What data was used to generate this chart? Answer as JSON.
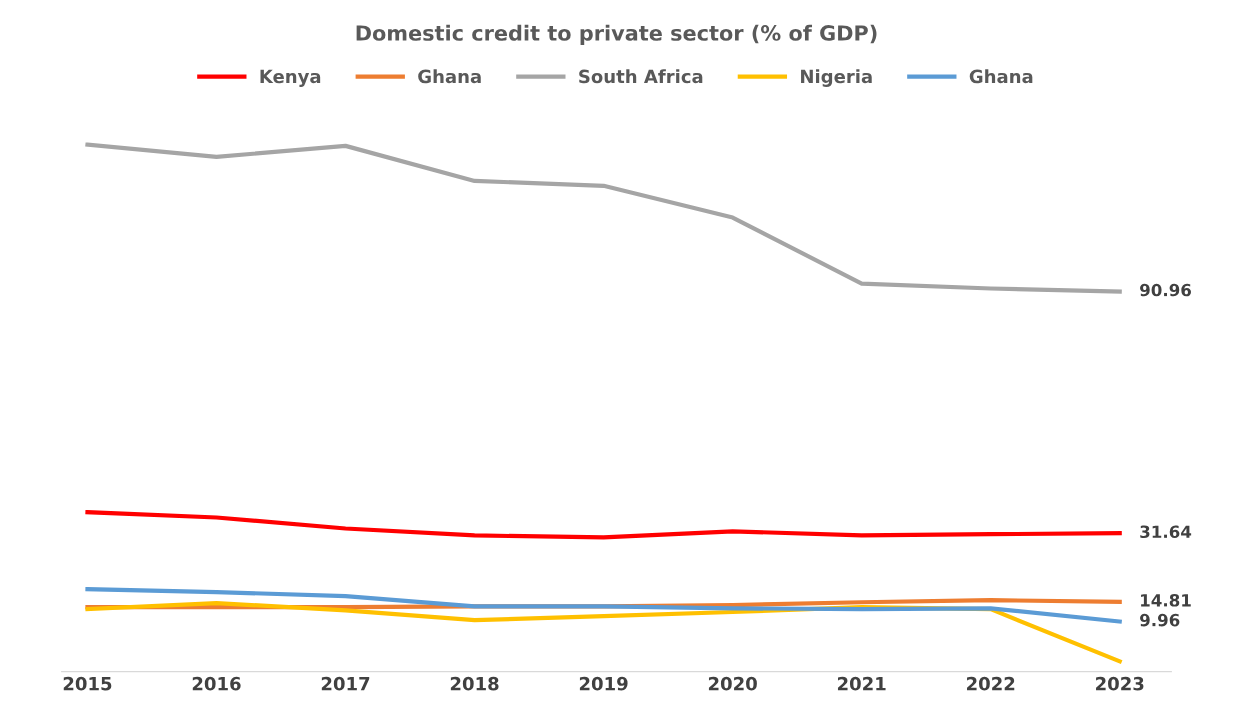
{
  "chart_data": {
    "type": "line",
    "title": "Domestic credit to private sector (% of GDP)",
    "categories": [
      "2015",
      "2016",
      "2017",
      "2018",
      "2019",
      "2020",
      "2021",
      "2022",
      "2023"
    ],
    "tick_labels": "x",
    "grid": false,
    "legend": "top",
    "marker": "none",
    "line_style": "solid",
    "series": [
      {
        "name": "Kenya",
        "color": "#ff0000",
        "values": [
          36.8,
          35.5,
          32.8,
          31.1,
          30.6,
          32.1,
          31.1,
          31.4,
          31.64
        ],
        "value_labels": [
          null,
          null,
          null,
          null,
          null,
          null,
          null,
          null,
          "31.64"
        ]
      },
      {
        "name": "Ghana",
        "color": "#ed7d31",
        "values": [
          13.5,
          13.5,
          13.5,
          13.7,
          13.7,
          14.0,
          14.7,
          15.2,
          14.81
        ],
        "value_labels": [
          null,
          null,
          null,
          null,
          null,
          null,
          null,
          null,
          "14.81"
        ]
      },
      {
        "name": "South Africa",
        "color": "#a5a5a5",
        "values": [
          127.0,
          124.0,
          126.7,
          118.1,
          116.9,
          109.1,
          92.9,
          91.7,
          90.96
        ],
        "value_labels": [
          null,
          null,
          null,
          null,
          null,
          null,
          null,
          null,
          "90.96"
        ]
      },
      {
        "name": "Nigeria",
        "color": "#ffc000",
        "values": [
          13.0,
          14.5,
          12.7,
          10.3,
          11.3,
          12.3,
          13.5,
          13.0,
          0.2
        ]
      },
      {
        "name": "Ghana",
        "color": "#5b9bd5",
        "values": [
          17.9,
          17.2,
          16.2,
          13.7,
          13.7,
          13.2,
          13.0,
          13.2,
          9.96
        ],
        "value_labels": [
          null,
          null,
          null,
          null,
          null,
          null,
          null,
          null,
          "9.96"
        ]
      }
    ]
  }
}
